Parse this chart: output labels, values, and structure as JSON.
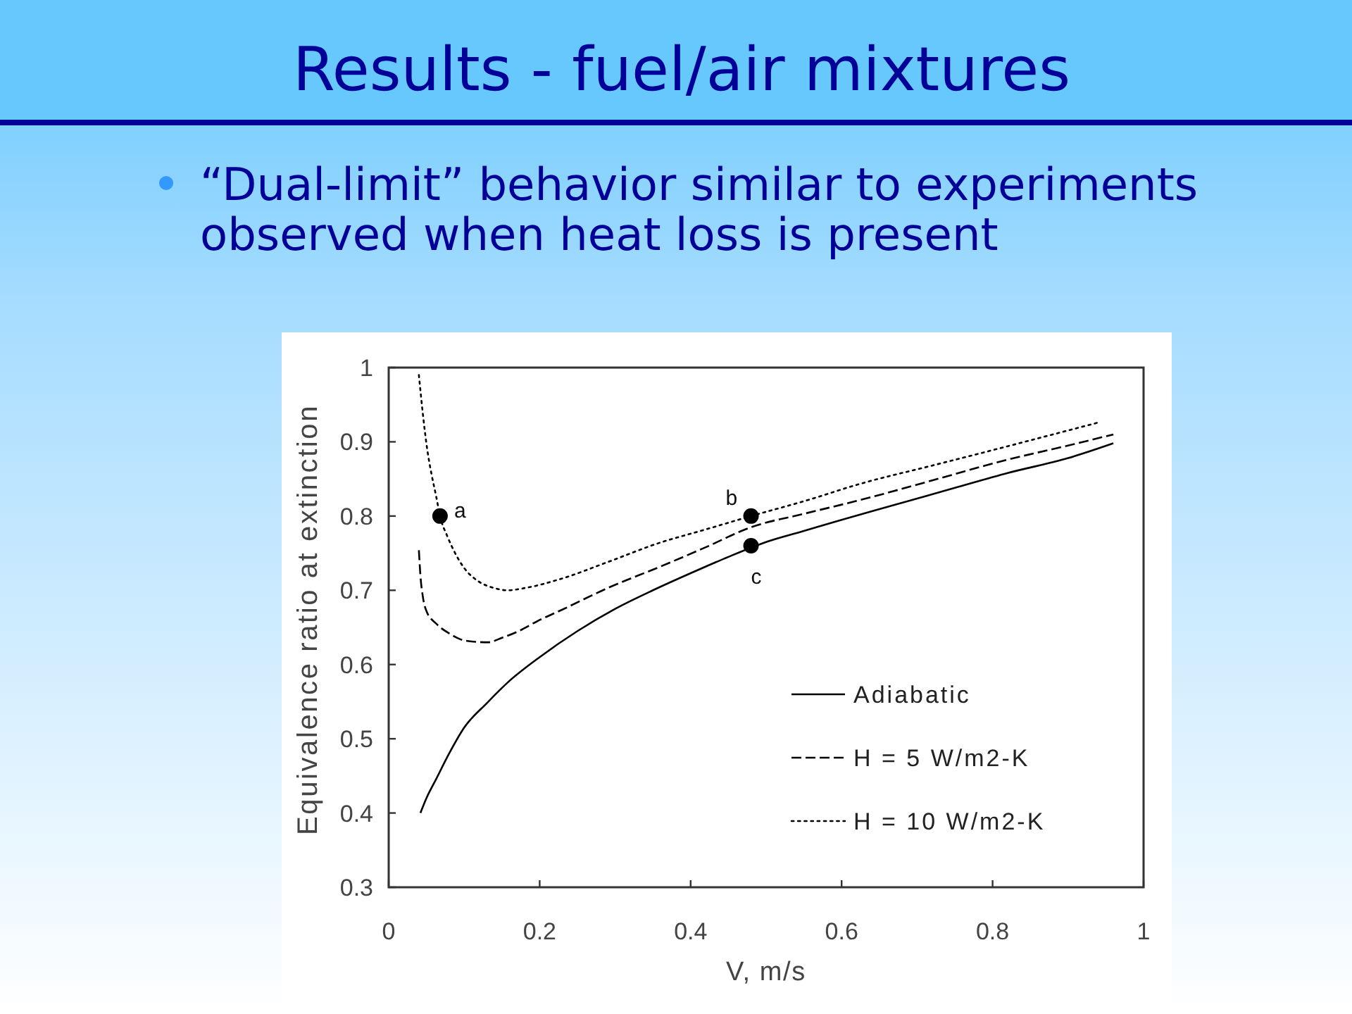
{
  "chart_data": {
    "type": "line",
    "title": "Results - fuel/air mixtures",
    "subtitle": "“Dual-limit” behavior similar to experiments observed when heat loss is present",
    "xlabel": "V, m/s",
    "ylabel": "Equivalence ratio at extinction",
    "xlim": [
      0,
      1
    ],
    "ylim": [
      0.3,
      1
    ],
    "xticks": [
      0,
      0.2,
      0.4,
      0.6,
      0.8,
      1
    ],
    "yticks": [
      0.3,
      0.4,
      0.5,
      0.6,
      0.7,
      0.8,
      0.9,
      1
    ],
    "grid": false,
    "legend": "bottom right",
    "series": [
      {
        "name": "Adiabatic",
        "color": "#000000",
        "line_style": "solid",
        "x": [
          0.042,
          0.05,
          0.063,
          0.08,
          0.1,
          0.13,
          0.16,
          0.2,
          0.25,
          0.3,
          0.35,
          0.4,
          0.45,
          0.5,
          0.55,
          0.6,
          0.67,
          0.75,
          0.82,
          0.9,
          0.96
        ],
        "values": [
          0.4,
          0.42,
          0.446,
          0.48,
          0.515,
          0.548,
          0.578,
          0.61,
          0.645,
          0.675,
          0.7,
          0.723,
          0.745,
          0.765,
          0.78,
          0.795,
          0.815,
          0.838,
          0.858,
          0.878,
          0.898
        ]
      },
      {
        "name": "H = 5 W/m2-K",
        "color": "#000000",
        "line_style": "dashed",
        "x": [
          0.04,
          0.042,
          0.045,
          0.05,
          0.063,
          0.08,
          0.095,
          0.11,
          0.132,
          0.15,
          0.17,
          0.2,
          0.23,
          0.29,
          0.36,
          0.42,
          0.48,
          0.55,
          0.63,
          0.72,
          0.82,
          0.9,
          0.96
        ],
        "values": [
          0.754,
          0.72,
          0.693,
          0.672,
          0.655,
          0.642,
          0.634,
          0.631,
          0.63,
          0.636,
          0.644,
          0.66,
          0.674,
          0.703,
          0.732,
          0.758,
          0.785,
          0.803,
          0.823,
          0.848,
          0.876,
          0.895,
          0.91
        ]
      },
      {
        "name": "H = 10 W/m2-K",
        "color": "#000000",
        "line_style": "dotted",
        "x": [
          0.04,
          0.045,
          0.051,
          0.057,
          0.063,
          0.068,
          0.078,
          0.088,
          0.1,
          0.119,
          0.14,
          0.157,
          0.18,
          0.23,
          0.29,
          0.356,
          0.42,
          0.48,
          0.55,
          0.63,
          0.72,
          0.816,
          0.88,
          0.94
        ],
        "values": [
          0.99,
          0.94,
          0.89,
          0.855,
          0.826,
          0.8,
          0.772,
          0.75,
          0.73,
          0.712,
          0.703,
          0.7,
          0.703,
          0.716,
          0.738,
          0.763,
          0.782,
          0.8,
          0.82,
          0.845,
          0.868,
          0.893,
          0.91,
          0.926
        ]
      },
      {
        "type": "scatter",
        "marker": "circle",
        "color": "#000000",
        "x": [
          0.068,
          0.48,
          0.48
        ],
        "values": [
          0.8,
          0.8,
          0.76
        ],
        "value_labels": [
          "a",
          "b",
          "c"
        ]
      }
    ]
  }
}
